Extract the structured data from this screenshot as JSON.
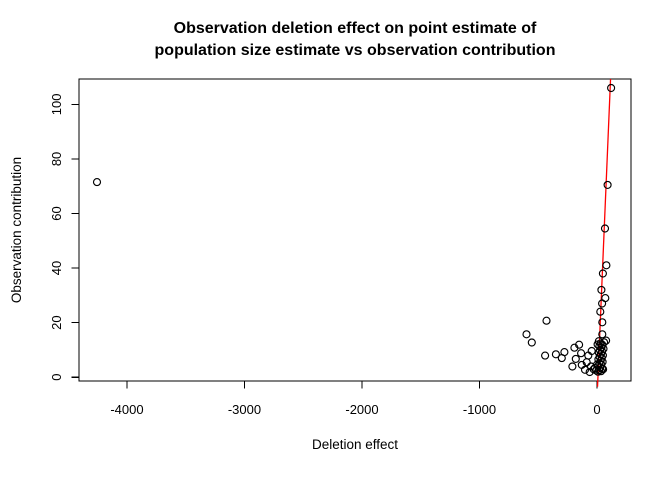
{
  "title": {
    "line1": "Observation deletion effect on point estimate of",
    "line2": "population size estimate vs observation contribution"
  },
  "colors": {
    "background": "#ffffff",
    "axis": "#000000",
    "text": "#000000",
    "fit_line": "#ff0000",
    "marker": "#000000"
  },
  "chart_data": {
    "type": "scatter",
    "title": "Observation deletion effect on point estimate of population size estimate vs observation contribution",
    "xlabel": "Deletion effect",
    "ylabel": "Observation contribution",
    "xlim": [
      -4408,
      289
    ],
    "ylim": [
      -1.4,
      109.3
    ],
    "x_ticks": [
      -4000,
      -3000,
      -2000,
      -1000,
      0
    ],
    "y_ticks": [
      0,
      20,
      40,
      60,
      80,
      100
    ],
    "grid": false,
    "legend": false,
    "marker": {
      "shape": "open-circle",
      "color": "#000000",
      "radius_px": 3.5
    },
    "fit_line": {
      "color": "#ff0000",
      "points": [
        [
          4.3,
          -3.5
        ],
        [
          115.0,
          109.3
        ]
      ]
    },
    "points": [
      [
        -4255,
        71.5
      ],
      [
        -600,
        15.7
      ],
      [
        -555,
        12.7
      ],
      [
        -442,
        7.9
      ],
      [
        -430,
        20.7
      ],
      [
        -350,
        8.4
      ],
      [
        -300,
        7.0
      ],
      [
        -278,
        9.2
      ],
      [
        -210,
        3.9
      ],
      [
        -193,
        10.8
      ],
      [
        -181,
        6.7
      ],
      [
        -153,
        11.9
      ],
      [
        -136,
        8.8
      ],
      [
        -130,
        4.5
      ],
      [
        -102,
        2.7
      ],
      [
        -88,
        5.5
      ],
      [
        -74,
        7.9
      ],
      [
        -62,
        1.9
      ],
      [
        -51,
        3.9
      ],
      [
        -45,
        9.6
      ],
      [
        -28,
        2.9
      ],
      [
        -18,
        3.4
      ],
      [
        -8,
        2.5
      ],
      [
        0,
        4.6
      ],
      [
        120,
        106
      ],
      [
        90,
        70.5
      ],
      [
        68,
        54.5
      ],
      [
        80,
        41
      ],
      [
        50,
        38
      ],
      [
        37,
        32
      ],
      [
        70,
        29
      ],
      [
        43,
        27
      ],
      [
        28,
        24
      ],
      [
        45,
        20.1
      ],
      [
        45,
        15.7
      ],
      [
        77,
        13.4
      ],
      [
        60,
        12.8
      ],
      [
        30,
        12.4
      ],
      [
        45,
        11.9
      ],
      [
        20,
        11.4
      ],
      [
        38,
        10.9
      ],
      [
        55,
        10.4
      ],
      [
        25,
        9.9
      ],
      [
        42,
        9.4
      ],
      [
        15,
        9.0
      ],
      [
        33,
        8.5
      ],
      [
        50,
        8.0
      ],
      [
        22,
        7.5
      ],
      [
        40,
        7.0
      ],
      [
        12,
        6.5
      ],
      [
        30,
        6.0
      ],
      [
        47,
        5.6
      ],
      [
        20,
        5.1
      ],
      [
        36,
        4.6
      ],
      [
        10,
        4.1
      ],
      [
        28,
        3.6
      ],
      [
        44,
        3.1
      ],
      [
        18,
        2.6
      ],
      [
        34,
        2.2
      ],
      [
        8,
        2.0
      ],
      [
        52,
        2.9
      ],
      [
        5,
        12.0
      ],
      [
        15,
        13.2
      ]
    ]
  }
}
